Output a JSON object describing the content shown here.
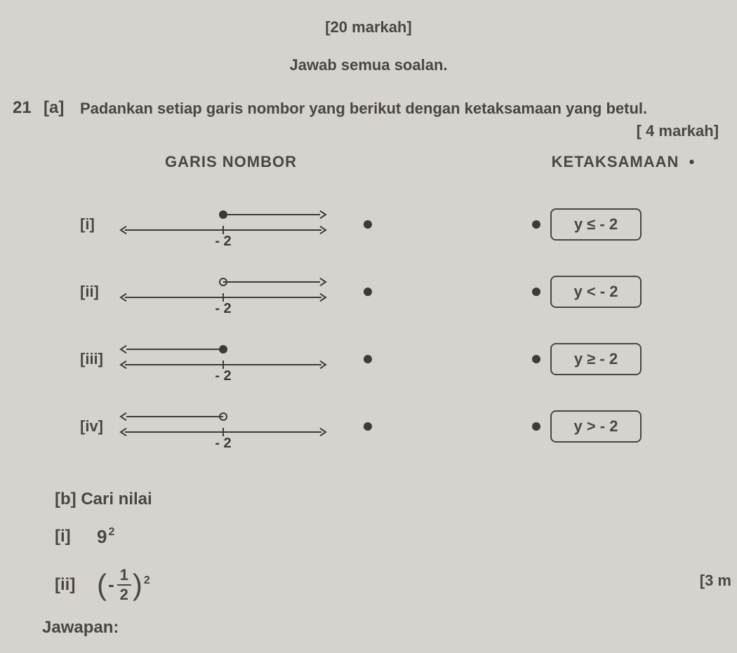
{
  "header": {
    "marks": "[20 markah]",
    "instruction": "Jawab semua soalan."
  },
  "question": {
    "number": "21",
    "parts": {
      "a": {
        "label": "[a]",
        "text": "Padankan setiap garis nombor yang berikut dengan ketaksamaan yang betul.",
        "marks": "[ 4 markah]",
        "left_heading": "GARIS NOMBOR",
        "right_heading": "KETAKSAMAAN",
        "number_lines": [
          {
            "label": "[i]",
            "tick_label": "- 2",
            "dot_filled": true,
            "ray_dir": "right"
          },
          {
            "label": "[ii]",
            "tick_label": "- 2",
            "dot_filled": false,
            "ray_dir": "right"
          },
          {
            "label": "[iii]",
            "tick_label": "- 2",
            "dot_filled": true,
            "ray_dir": "left"
          },
          {
            "label": "[iv]",
            "tick_label": "- 2",
            "dot_filled": false,
            "ray_dir": "left"
          }
        ],
        "answers": [
          {
            "text": "y ≤ - 2"
          },
          {
            "text": "y < - 2"
          },
          {
            "text": "y ≥ - 2"
          },
          {
            "text": "y > - 2"
          }
        ]
      },
      "b": {
        "label": "[b]",
        "text": "Cari nilai",
        "subparts": [
          {
            "label": "[i]",
            "kind": "power",
            "base": "9",
            "exp": "2"
          },
          {
            "label": "[ii]",
            "kind": "fracpower",
            "sign": "-",
            "num": "1",
            "den": "2",
            "exp": "2"
          }
        ],
        "marks_partial": "[3 m"
      }
    }
  },
  "footer": {
    "jawapan": "Jawapan:"
  },
  "style": {
    "stroke": "#3e3a37",
    "stroke_width": 2,
    "circle_r": 5,
    "arrow_size": 8
  }
}
